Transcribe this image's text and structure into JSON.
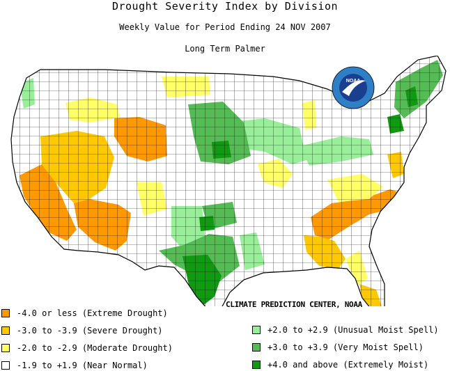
{
  "header": {
    "title": "Drought Severity Index by Division",
    "subtitle": "Weekly Value for Period Ending 24 NOV 2007",
    "index_name": "Long Term Palmer"
  },
  "logo": {
    "text": "NOAA",
    "colors": {
      "ring": "#2f7fc7",
      "center": "#1a3f8f",
      "bird": "#ffffff"
    }
  },
  "credit": "CLIMATE PREDICTION CENTER, NOAA",
  "legend": {
    "drought": [
      {
        "label": "-4.0 or less (Extreme Drought)",
        "color": "#ff9900"
      },
      {
        "label": "-3.0 to -3.9 (Severe Drought)",
        "color": "#ffc800"
      },
      {
        "label": "-2.0 to -2.9 (Moderate Drought)",
        "color": "#ffff66"
      },
      {
        "label": "-1.9 to +1.9 (Near Normal)",
        "color": "#ffffff"
      }
    ],
    "moist": [
      {
        "label": "+2.0 to +2.9 (Unusual Moist Spell)",
        "color": "#99ee99"
      },
      {
        "label": "+3.0 to +3.9 (Very Moist Spell)",
        "color": "#55bb55"
      },
      {
        "label": "+4.0 and above (Extremely Moist)",
        "color": "#119911"
      }
    ]
  },
  "map_regions": [
    {
      "region": "Southern California / Southwest desert",
      "category": "extreme"
    },
    {
      "region": "Arizona",
      "category": "extreme"
    },
    {
      "region": "Wyoming / Utah border",
      "category": "extreme"
    },
    {
      "region": "Tennessee / Alabama / Carolinas",
      "category": "extreme"
    },
    {
      "region": "Nevada / Utah / Oregon",
      "category": "severe"
    },
    {
      "region": "Georgia / Florida",
      "category": "severe"
    },
    {
      "region": "Texas",
      "category": "extreme_moist"
    },
    {
      "region": "Oklahoma / Kansas / Nebraska / Dakotas",
      "category": "very_moist"
    },
    {
      "region": "Upper Midwest / Great Lakes",
      "category": "unusual_moist"
    },
    {
      "region": "New England",
      "category": "very_moist"
    }
  ]
}
